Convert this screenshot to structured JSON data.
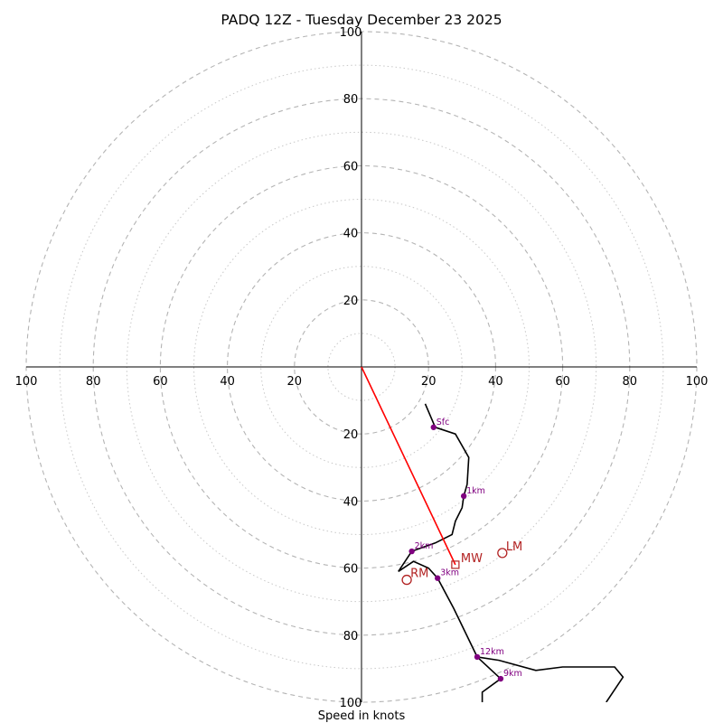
{
  "chart_data": {
    "type": "hodograph",
    "title": "PADQ 12Z - Tuesday December 23 2025",
    "xlabel": "Speed in knots",
    "xlim": [
      -100,
      100
    ],
    "ylim": [
      -100,
      100
    ],
    "major_rings": [
      20,
      40,
      60,
      80,
      100
    ],
    "minor_rings": [
      10,
      30,
      50,
      70,
      90
    ],
    "tick_labels": [
      "20",
      "40",
      "60",
      "80",
      "100"
    ],
    "hodograph_line": {
      "color": "#000000",
      "points": [
        [
          19.0,
          -11.0
        ],
        [
          22.0,
          -18.0
        ],
        [
          28.0,
          -20.0
        ],
        [
          32.0,
          -27.0
        ],
        [
          31.5,
          -35.0
        ],
        [
          30.5,
          -38.5
        ],
        [
          30.0,
          -42.0
        ],
        [
          28.0,
          -46.0
        ],
        [
          27.0,
          -50.0
        ],
        [
          22.0,
          -52.5
        ],
        [
          15.0,
          -55.0
        ],
        [
          13.0,
          -58.0
        ],
        [
          11.0,
          -61.0
        ],
        [
          15.5,
          -58.0
        ],
        [
          20.0,
          -60.0
        ],
        [
          22.7,
          -63.0
        ],
        [
          27.5,
          -72.0
        ],
        [
          34.5,
          -86.5
        ],
        [
          41.5,
          -93.0
        ],
        [
          36.0,
          -97.0
        ],
        [
          36.0,
          -100.0
        ]
      ],
      "upper_points": [
        [
          34.5,
          -86.5
        ],
        [
          41.0,
          -87.5
        ],
        [
          52.0,
          -90.5
        ],
        [
          60.0,
          -89.5
        ],
        [
          75.5,
          -89.5
        ],
        [
          78.0,
          -92.5
        ],
        [
          73.0,
          -100.0
        ]
      ]
    },
    "height_markers": [
      {
        "label": "Sfc",
        "u": 21.5,
        "v": -18.0
      },
      {
        "label": "1km",
        "u": 30.5,
        "v": -38.5
      },
      {
        "label": "2km",
        "u": 15.0,
        "v": -55.0
      },
      {
        "label": "3km",
        "u": 22.7,
        "v": -63.0
      },
      {
        "label": "12km",
        "u": 34.5,
        "v": -86.5
      },
      {
        "label": "9km",
        "u": 41.5,
        "v": -93.0
      }
    ],
    "mean_wind": {
      "label": "MW",
      "u": 28.0,
      "v": -59.0,
      "color": "#ff0000"
    },
    "storm_motion": [
      {
        "label": "LM",
        "u": 42.0,
        "v": -55.5,
        "color": "#b22222"
      },
      {
        "label": "RM",
        "u": 13.5,
        "v": -63.5,
        "color": "#b22222"
      }
    ]
  }
}
